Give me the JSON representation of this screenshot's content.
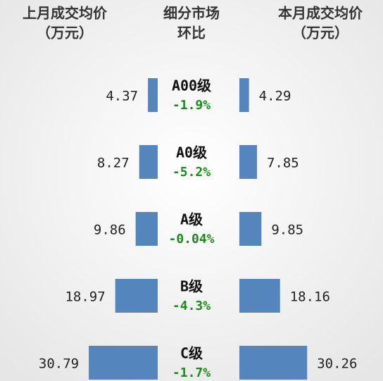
{
  "chart_data": {
    "type": "butterfly",
    "category_label": "细分市场",
    "unit": "（万元）",
    "categories": [
      "A00级",
      "A0级",
      "A级",
      "B级",
      "C级"
    ],
    "series": [
      {
        "name": "上月成交均价",
        "color": "#5585bd",
        "values": [
          4.37,
          8.27,
          9.86,
          18.97,
          30.79
        ]
      },
      {
        "name": "本月成交均价",
        "color": "#5585bd",
        "values": [
          4.29,
          7.85,
          9.85,
          18.16,
          30.26
        ]
      },
      {
        "name": "环比",
        "color": "#1a8a1a",
        "values": [
          -1.9,
          -5.2,
          -0.04,
          -4.3,
          -1.7
        ],
        "value_labels": [
          "-1.9%",
          "-5.2%",
          "-0.04%",
          "-4.3%",
          "-1.7%"
        ]
      }
    ]
  }
}
